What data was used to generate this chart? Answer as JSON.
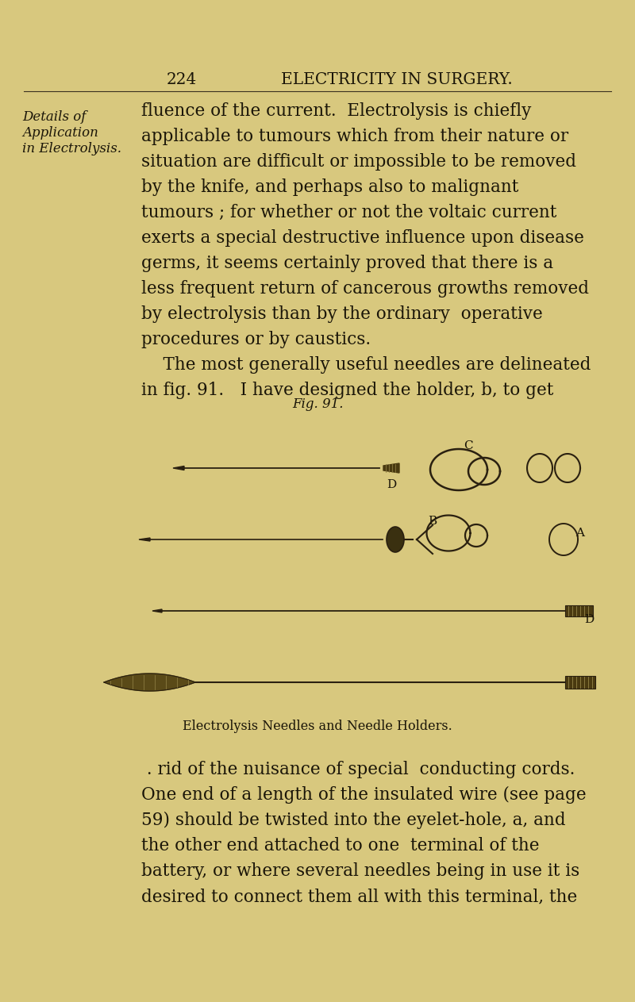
{
  "bg_color": "#d8c87e",
  "text_color": "#1a1508",
  "header_num": "224",
  "header_title": "ELECTRICITY IN SURGERY.",
  "margin_label1": "Details of",
  "margin_label2": "Application",
  "margin_label3": "in Electrolysis.",
  "body_lines": [
    "fluence of the current.  Electrolysis is chiefly",
    "applicable to tumours which from their nature or",
    "situation are difficult or impossible to be removed",
    "by the knife, and perhaps also to malignant",
    "tumours ; for whether or not the voltaic current",
    "exerts a special destructive influence upon disease",
    "germs, it seems certainly proved that there is a",
    "less frequent return of cancerous growths removed",
    "by electrolysis than by the ordinary  operative",
    "procedures or by caustics.",
    "    The most generally useful needles are delineated",
    "in fig. 91.   I have designed the holder, b, to get"
  ],
  "fig_caption": "Fig. 91.",
  "fig_subcaption": "Electrolysis Needles and Needle Holders.",
  "bottom_lines": [
    " . rid of the nuisance of special  conducting cords.",
    "One end of a length of the insulated wire (see page",
    "59) should be twisted into the eyelet-hole, a, and",
    "the other end attached to one  terminal of the",
    "battery, or where several needles being in use it is",
    "desired to connect them all with this terminal, the"
  ],
  "font_size_header": 14.5,
  "font_size_body": 15.5,
  "font_size_margin": 12,
  "font_size_fig_caption": 12,
  "font_size_subcaption": 11.5
}
